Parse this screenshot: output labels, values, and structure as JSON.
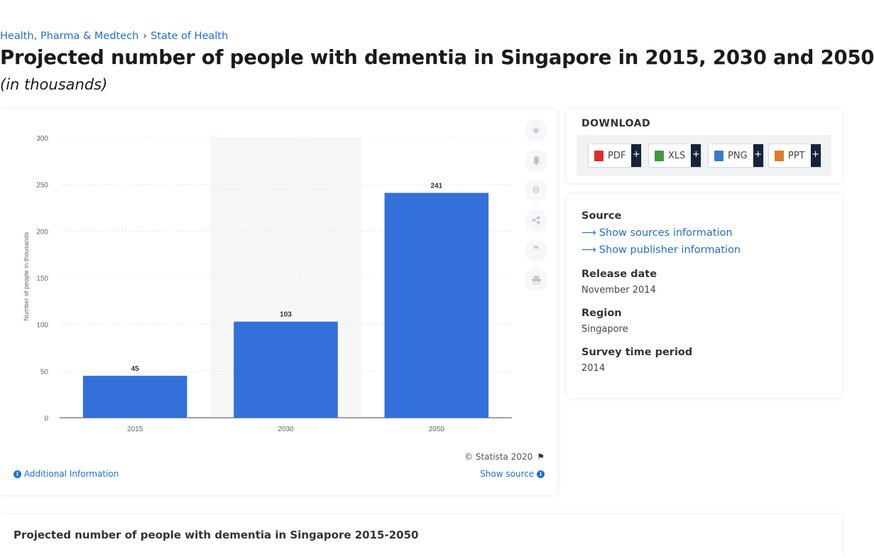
{
  "breadcrumb": {
    "category": "Health, Pharma & Medtech",
    "separator": "›",
    "subcategory": "State of Health"
  },
  "title": "Projected number of people with dementia in Singapore in 2015, 2030 and 2050",
  "subtitle": "(in thousands)",
  "chart_data": {
    "type": "bar",
    "categories": [
      "2015",
      "2030",
      "2050"
    ],
    "values": [
      45,
      103,
      241
    ],
    "value_labels": [
      "45",
      "103",
      "241"
    ],
    "ylabel": "Number of people in thousands",
    "ylim": [
      0,
      300
    ],
    "yticks": [
      "0",
      "50",
      "100",
      "150",
      "200",
      "250",
      "300"
    ],
    "bar_color": "#3370d9",
    "grid": true,
    "highlighted_category": "2030"
  },
  "tools": [
    "star-icon",
    "bell-icon",
    "gear-icon",
    "share-icon",
    "quote-icon",
    "print-icon"
  ],
  "footer": {
    "copyright": "© Statista 2020",
    "additional_info": "Additional Information",
    "show_source": "Show source"
  },
  "download": {
    "title": "DOWNLOAD",
    "buttons": [
      {
        "label": "PDF",
        "plus": "+",
        "color": "#d9302b"
      },
      {
        "label": "XLS",
        "plus": "+",
        "color": "#3c9a3c"
      },
      {
        "label": "PNG",
        "plus": "+",
        "color": "#3a7cc9"
      },
      {
        "label": "PPT",
        "plus": "+",
        "color": "#e07a24"
      }
    ]
  },
  "info": {
    "source_label": "Source",
    "show_sources": "Show sources information",
    "show_publisher": "Show publisher information",
    "release_date_label": "Release date",
    "release_date": "November 2014",
    "region_label": "Region",
    "region": "Singapore",
    "survey_period_label": "Survey time period",
    "survey_period": "2014"
  },
  "bottom": {
    "title": "Projected number of people with dementia in Singapore 2015-2050"
  },
  "colors": {
    "link": "#1f6fd1",
    "accent_dark": "#17233a"
  }
}
